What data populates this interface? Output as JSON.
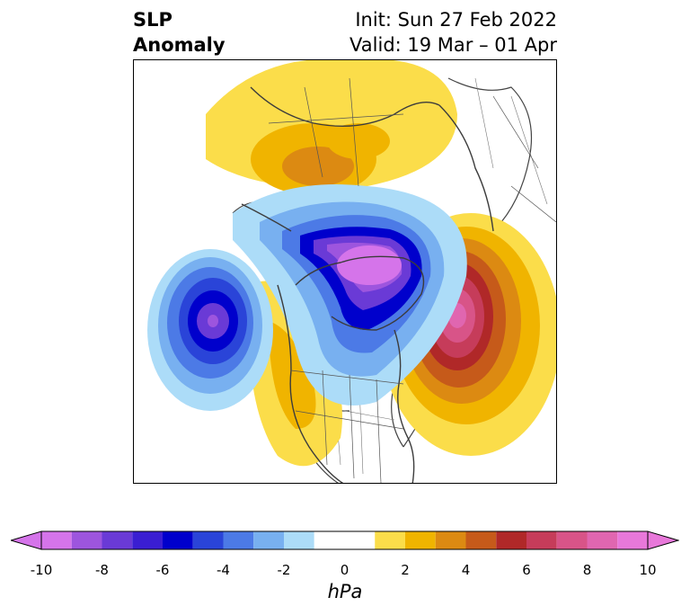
{
  "header": {
    "title_line1": "SLP",
    "title_line2": "Anomaly",
    "init_text": "Init: Sun 27 Feb 2022",
    "valid_text": "Valid: 19 Mar – 01 Apr"
  },
  "colorbar": {
    "unit_label": "hPa",
    "tick_labels": [
      "-10",
      "-8",
      "-6",
      "-4",
      "-2",
      "0",
      "2",
      "4",
      "6",
      "8",
      "10"
    ],
    "bins": [
      {
        "from": -10,
        "to": -9,
        "color": "#d574ea"
      },
      {
        "from": -9,
        "to": -8,
        "color": "#9d55de"
      },
      {
        "from": -8,
        "to": -7,
        "color": "#6a3ad6"
      },
      {
        "from": -7,
        "to": -6,
        "color": "#3a1ed2"
      },
      {
        "from": -6,
        "to": -5,
        "color": "#0000cc"
      },
      {
        "from": -5,
        "to": -4,
        "color": "#2a44d8"
      },
      {
        "from": -4,
        "to": -3,
        "color": "#4c7ae6"
      },
      {
        "from": -3,
        "to": -2,
        "color": "#78b0f0"
      },
      {
        "from": -2,
        "to": -1,
        "color": "#acdcf8"
      },
      {
        "from": -1,
        "to": 1,
        "color": "#ffffff"
      },
      {
        "from": 1,
        "to": 2,
        "color": "#fbdd4a"
      },
      {
        "from": 2,
        "to": 3,
        "color": "#f0b400"
      },
      {
        "from": 3,
        "to": 4,
        "color": "#dc8a12"
      },
      {
        "from": 4,
        "to": 5,
        "color": "#c65a1a"
      },
      {
        "from": 5,
        "to": 6,
        "color": "#b02828"
      },
      {
        "from": 6,
        "to": 7,
        "color": "#c63c5a"
      },
      {
        "from": 7,
        "to": 8,
        "color": "#d85488"
      },
      {
        "from": 8,
        "to": 9,
        "color": "#e066b0"
      },
      {
        "from": 9,
        "to": 10,
        "color": "#e878da"
      }
    ],
    "extend_low_color": "#d574ea",
    "extend_high_color": "#e878da"
  }
}
